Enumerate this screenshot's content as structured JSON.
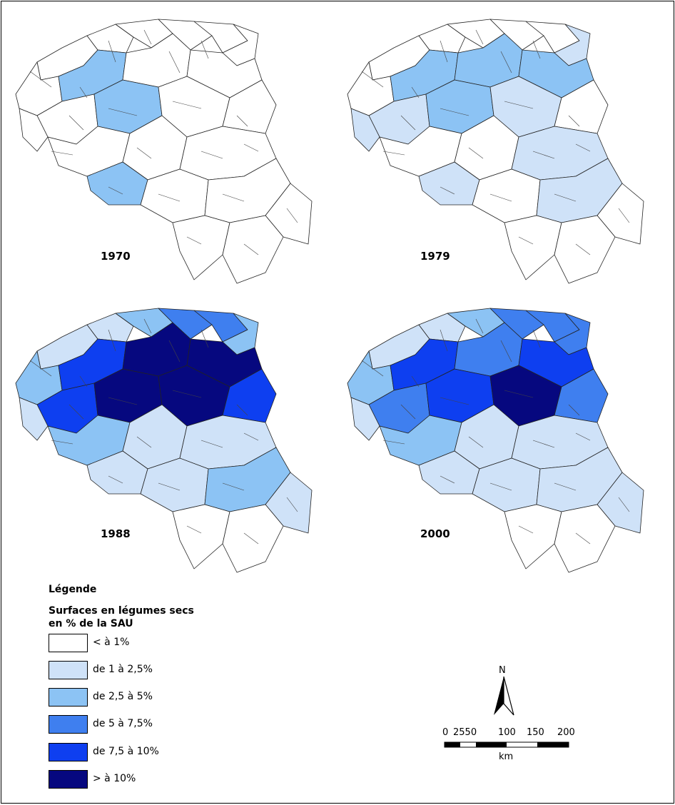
{
  "colors": {
    "c0": "#ffffff",
    "c1": "#cfe2f8",
    "c2": "#8cc3f4",
    "c3": "#3f7fef",
    "c4": "#0e3ff0",
    "c5": "#06087f"
  },
  "maps": [
    {
      "year": "1970",
      "regions": [
        "c0",
        "c0",
        "c0",
        "c0",
        "c0",
        "c0",
        "c0",
        "c2",
        "c0",
        "c0",
        "c0",
        "c2",
        "c0",
        "c0",
        "c0",
        "c0",
        "c0",
        "c0",
        "c2",
        "c0",
        "c0",
        "c0",
        "c0",
        "c0"
      ]
    },
    {
      "year": "1979",
      "regions": [
        "c0",
        "c0",
        "c0",
        "c0",
        "c0",
        "c1",
        "c0",
        "c2",
        "c2",
        "c2",
        "c1",
        "c2",
        "c1",
        "c0",
        "c1",
        "c0",
        "c0",
        "c1",
        "c1",
        "c0",
        "c1",
        "c0",
        "c0",
        "c0"
      ]
    },
    {
      "year": "1988",
      "regions": [
        "c1",
        "c1",
        "c2",
        "c3",
        "c3",
        "c2",
        "c2",
        "c4",
        "c5",
        "c5",
        "c4",
        "c5",
        "c5",
        "c4",
        "c1",
        "c2",
        "c1",
        "c1",
        "c1",
        "c1",
        "c2",
        "c1",
        "c0",
        "c0"
      ]
    },
    {
      "year": "2000",
      "regions": [
        "c1",
        "c1",
        "c2",
        "c3",
        "c3",
        "c3",
        "c2",
        "c4",
        "c3",
        "c4",
        "c3",
        "c4",
        "c5",
        "c3",
        "c1",
        "c2",
        "c1",
        "c1",
        "c1",
        "c1",
        "c1",
        "c1",
        "c0",
        "c0"
      ]
    }
  ],
  "legend": {
    "title": "Légende",
    "subtitle_line1": "Surfaces en légumes secs",
    "subtitle_line2": "en % de la SAU",
    "items": [
      {
        "label": "< à 1%",
        "color_key": "c0"
      },
      {
        "label": "de 1 à 2,5%",
        "color_key": "c1"
      },
      {
        "label": "de 2,5 à 5%",
        "color_key": "c2"
      },
      {
        "label": "de 5 à 7,5%",
        "color_key": "c3"
      },
      {
        "label": "de 7,5 à 10%",
        "color_key": "c4"
      },
      {
        "label": "> à 10%",
        "color_key": "c5"
      }
    ]
  },
  "compass": {
    "label": "N"
  },
  "scale_bar": {
    "ticks": [
      "0",
      "2550",
      "100",
      "150",
      "200"
    ],
    "unit": "km"
  }
}
